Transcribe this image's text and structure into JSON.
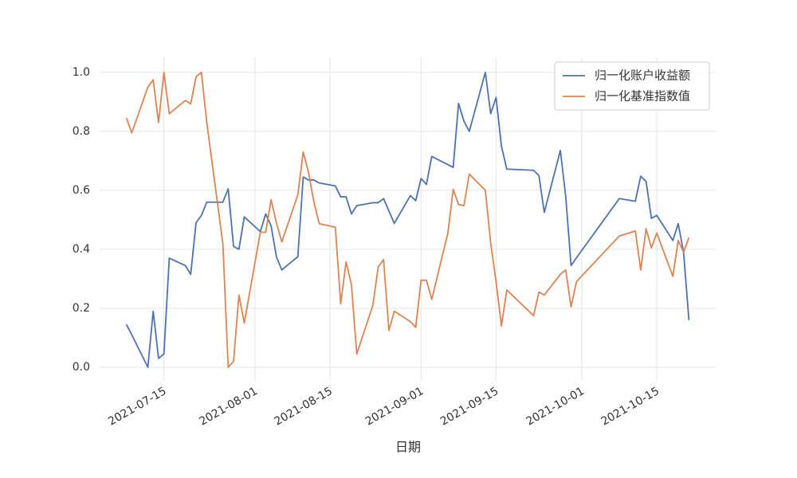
{
  "chart_data": {
    "type": "line",
    "xlabel": "日期",
    "x": [
      "2021-07-08",
      "2021-07-09",
      "2021-07-12",
      "2021-07-13",
      "2021-07-14",
      "2021-07-15",
      "2021-07-16",
      "2021-07-19",
      "2021-07-20",
      "2021-07-21",
      "2021-07-22",
      "2021-07-23",
      "2021-07-26",
      "2021-07-27",
      "2021-07-28",
      "2021-07-29",
      "2021-07-30",
      "2021-08-02",
      "2021-08-03",
      "2021-08-04",
      "2021-08-05",
      "2021-08-06",
      "2021-08-09",
      "2021-08-10",
      "2021-08-11",
      "2021-08-12",
      "2021-08-13",
      "2021-08-16",
      "2021-08-17",
      "2021-08-18",
      "2021-08-19",
      "2021-08-20",
      "2021-08-23",
      "2021-08-24",
      "2021-08-25",
      "2021-08-26",
      "2021-08-27",
      "2021-08-30",
      "2021-08-31",
      "2021-09-01",
      "2021-09-02",
      "2021-09-03",
      "2021-09-06",
      "2021-09-07",
      "2021-09-08",
      "2021-09-09",
      "2021-09-10",
      "2021-09-13",
      "2021-09-14",
      "2021-09-15",
      "2021-09-16",
      "2021-09-17",
      "2021-09-22",
      "2021-09-23",
      "2021-09-24",
      "2021-09-27",
      "2021-09-28",
      "2021-09-29",
      "2021-09-30",
      "2021-10-08",
      "2021-10-11",
      "2021-10-12",
      "2021-10-13",
      "2021-10-14",
      "2021-10-15",
      "2021-10-18",
      "2021-10-19",
      "2021-10-20",
      "2021-10-21"
    ],
    "series": [
      {
        "name": "归一化账户收益额",
        "color": "#4c72b0",
        "values": [
          0.145,
          0.11,
          0.0,
          0.19,
          0.03,
          0.045,
          0.37,
          0.345,
          0.315,
          0.49,
          0.515,
          0.56,
          0.56,
          0.605,
          0.41,
          0.4,
          0.51,
          0.46,
          0.52,
          0.48,
          0.375,
          0.33,
          0.375,
          0.645,
          0.635,
          0.635,
          0.625,
          0.615,
          0.578,
          0.578,
          0.52,
          0.548,
          0.558,
          0.558,
          0.572,
          0.53,
          0.488,
          0.582,
          0.565,
          0.64,
          0.62,
          0.715,
          0.687,
          0.678,
          0.895,
          0.835,
          0.8,
          1.0,
          0.86,
          0.915,
          0.75,
          0.672,
          0.668,
          0.65,
          0.525,
          0.735,
          0.58,
          0.345,
          0.371,
          0.572,
          0.563,
          0.648,
          0.63,
          0.505,
          0.515,
          0.43,
          0.487,
          0.39,
          0.16
        ]
      },
      {
        "name": "归一化基准指数值",
        "color": "#dd8452",
        "values": [
          0.845,
          0.795,
          0.95,
          0.975,
          0.83,
          1.0,
          0.86,
          0.905,
          0.893,
          0.985,
          1.0,
          0.83,
          0.42,
          0.0,
          0.02,
          0.245,
          0.15,
          0.458,
          0.458,
          0.568,
          0.49,
          0.425,
          0.585,
          0.73,
          0.66,
          0.56,
          0.487,
          0.475,
          0.215,
          0.357,
          0.28,
          0.045,
          0.21,
          0.34,
          0.365,
          0.125,
          0.19,
          0.155,
          0.135,
          0.295,
          0.295,
          0.23,
          0.455,
          0.603,
          0.552,
          0.548,
          0.655,
          0.6,
          0.42,
          0.29,
          0.14,
          0.262,
          0.175,
          0.255,
          0.245,
          0.315,
          0.33,
          0.205,
          0.29,
          0.445,
          0.462,
          0.33,
          0.47,
          0.405,
          0.455,
          0.308,
          0.43,
          0.39,
          0.44
        ]
      }
    ],
    "xlim": [
      "2021-07-03",
      "2021-10-26"
    ],
    "xticks": [
      "2021-07-15",
      "2021-08-01",
      "2021-08-15",
      "2021-09-01",
      "2021-09-15",
      "2021-10-01",
      "2021-10-15"
    ],
    "ylim": [
      -0.046,
      1.051
    ],
    "yticks": [
      {
        "value": 0,
        "label": "0.0"
      },
      {
        "value": 0.2,
        "label": "0.2"
      },
      {
        "value": 0.4,
        "label": "0.4"
      },
      {
        "value": 0.6,
        "label": "0.6"
      },
      {
        "value": 0.8,
        "label": "0.8"
      },
      {
        "value": 1.0,
        "label": "1.0"
      }
    ],
    "grid": true,
    "legend": "upper right"
  }
}
